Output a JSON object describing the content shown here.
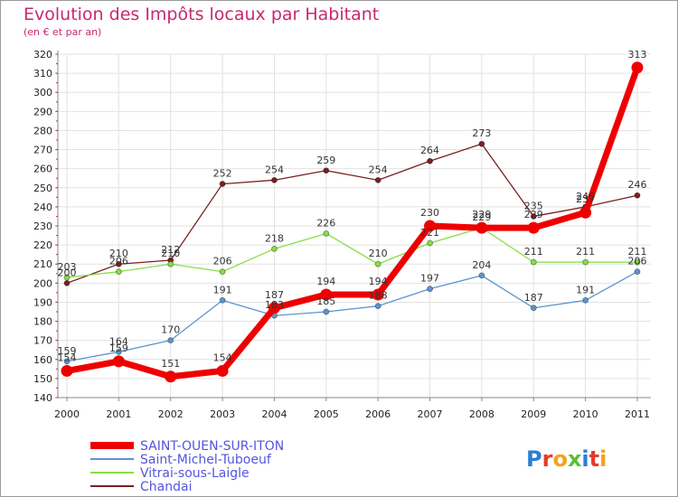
{
  "header": {
    "title": "Evolution des Impôts locaux par Habitant",
    "subtitle": "(en € et par an)"
  },
  "logo": {
    "text": "Proxiti"
  },
  "chart_data": {
    "type": "line",
    "title": "Evolution des Impôts locaux par Habitant",
    "subtitle": "(en € et par an)",
    "xlabel": "",
    "ylabel": "",
    "x": [
      2000,
      2001,
      2002,
      2003,
      2004,
      2005,
      2006,
      2007,
      2008,
      2009,
      2010,
      2011
    ],
    "ylim": [
      140,
      320
    ],
    "yticks": [
      140,
      150,
      160,
      170,
      180,
      190,
      200,
      210,
      220,
      230,
      240,
      250,
      260,
      270,
      280,
      290,
      300,
      310,
      320
    ],
    "grid": true,
    "legend_position": "bottom-left",
    "series": [
      {
        "name": "Chandai",
        "color": "#7a2020",
        "values": [
          200,
          210,
          212,
          252,
          254,
          259,
          254,
          264,
          273,
          235,
          240,
          246
        ]
      },
      {
        "name": "Vitrai-sous-Laigle",
        "color": "#88dd44",
        "values": [
          203,
          206,
          210,
          206,
          218,
          226,
          210,
          221,
          229,
          211,
          211,
          211
        ]
      },
      {
        "name": "Saint-Michel-Tuboeuf",
        "color": "#5b95d0",
        "values": [
          159,
          164,
          170,
          191,
          183,
          185,
          188,
          197,
          204,
          187,
          191,
          206
        ]
      },
      {
        "name": "SAINT-OUEN-SUR-ITON",
        "color": "#ee0000",
        "values": [
          154,
          159,
          151,
          154,
          187,
          194,
          194,
          230,
          229,
          229,
          237,
          313
        ]
      }
    ],
    "legend": [
      "SAINT-OUEN-SUR-ITON",
      "Saint-Michel-Tuboeuf",
      "Vitrai-sous-Laigle",
      "Chandai"
    ]
  }
}
